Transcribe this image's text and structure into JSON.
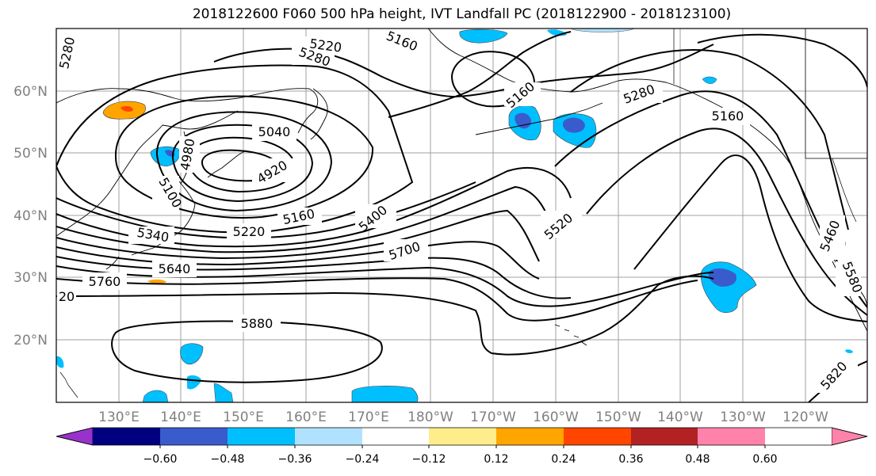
{
  "title": "2018122600 F060 500 hPa height, IVT Landfall PC (2018122900 - 2018123100)",
  "lat_labels": [
    "60°N",
    "50°N",
    "40°N",
    "30°N",
    "20°N"
  ],
  "lon_labels": [
    "130°E",
    "140°E",
    "150°E",
    "160°E",
    "170°E",
    "180°W",
    "170°W",
    "160°W",
    "150°W",
    "140°W",
    "130°W",
    "120°W"
  ],
  "contour_labels": [
    "5280",
    "5220",
    "5160",
    "5280",
    "5160",
    "5280",
    "5160",
    "5040",
    "4980",
    "4920",
    "5100",
    "5160",
    "5220",
    "5340",
    "5400",
    "5520",
    "5700",
    "5640",
    "5760",
    "5880",
    "5820",
    "5460",
    "5580",
    "20"
  ],
  "colorbar": {
    "ticks": [
      "−0.60",
      "−0.48",
      "−0.36",
      "−0.24",
      "−0.12",
      "0.12",
      "0.24",
      "0.36",
      "0.48",
      "0.60"
    ],
    "colors": [
      "#9932cc",
      "#000080",
      "#3a5bcc",
      "#00bfff",
      "#b0e2ff",
      "#ffffff",
      "#ffec8b",
      "#ffa500",
      "#ff4500",
      "#b22222",
      "#ff82ab"
    ]
  }
}
